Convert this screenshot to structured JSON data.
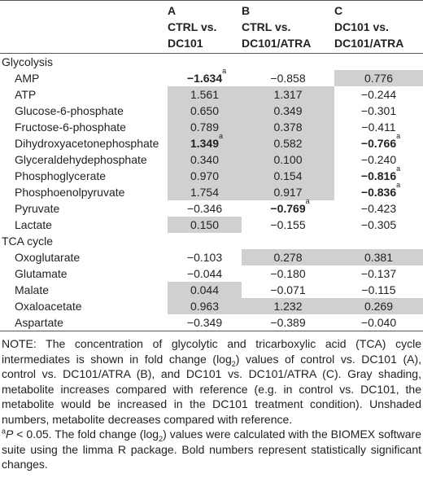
{
  "table": {
    "columns": [
      {
        "letter": "A",
        "lines": [
          "CTRL vs.",
          "DC101"
        ]
      },
      {
        "letter": "B",
        "lines": [
          "CTRL vs.",
          "DC101/ATRA"
        ]
      },
      {
        "letter": "C",
        "lines": [
          "DC101 vs.",
          "DC101/ATRA"
        ]
      }
    ],
    "sections": [
      {
        "title": "Glycolysis",
        "rows": [
          {
            "name": "AMP",
            "cells": [
              {
                "value": "−1.634",
                "sup": "a",
                "bold": true,
                "shaded": false
              },
              {
                "value": "−0.858",
                "bold": false,
                "shaded": false
              },
              {
                "value": "0.776",
                "bold": false,
                "shaded": true
              }
            ]
          },
          {
            "name": "ATP",
            "cells": [
              {
                "value": "1.561",
                "bold": false,
                "shaded": true
              },
              {
                "value": "1.317",
                "bold": false,
                "shaded": true
              },
              {
                "value": "−0.244",
                "bold": false,
                "shaded": false
              }
            ]
          },
          {
            "name": "Glucose-6-phosphate",
            "cells": [
              {
                "value": "0.650",
                "bold": false,
                "shaded": true
              },
              {
                "value": "0.349",
                "bold": false,
                "shaded": true
              },
              {
                "value": "−0.301",
                "bold": false,
                "shaded": false
              }
            ]
          },
          {
            "name": "Fructose-6-phosphate",
            "cells": [
              {
                "value": "0.789",
                "bold": false,
                "shaded": true
              },
              {
                "value": "0.378",
                "bold": false,
                "shaded": true
              },
              {
                "value": "−0.411",
                "bold": false,
                "shaded": false
              }
            ]
          },
          {
            "name": "Dihydroxyacetonephosphate",
            "cells": [
              {
                "value": "1.349",
                "sup": "a",
                "bold": true,
                "shaded": true
              },
              {
                "value": "0.582",
                "bold": false,
                "shaded": true
              },
              {
                "value": "−0.766",
                "sup": "a",
                "bold": true,
                "shaded": false
              }
            ]
          },
          {
            "name": "Glyceraldehydephosphate",
            "cells": [
              {
                "value": "0.340",
                "bold": false,
                "shaded": true
              },
              {
                "value": "0.100",
                "bold": false,
                "shaded": true
              },
              {
                "value": "−0.240",
                "bold": false,
                "shaded": false
              }
            ]
          },
          {
            "name": "Phosphoglycerate",
            "cells": [
              {
                "value": "0.970",
                "bold": false,
                "shaded": true
              },
              {
                "value": "0.154",
                "bold": false,
                "shaded": true
              },
              {
                "value": "−0.816",
                "sup": "a",
                "bold": true,
                "shaded": false
              }
            ]
          },
          {
            "name": "Phosphoenolpyruvate",
            "cells": [
              {
                "value": "1.754",
                "bold": false,
                "shaded": true
              },
              {
                "value": "0.917",
                "bold": false,
                "shaded": true
              },
              {
                "value": "−0.836",
                "sup": "a",
                "bold": true,
                "shaded": false
              }
            ]
          },
          {
            "name": "Pyruvate",
            "cells": [
              {
                "value": "−0.346",
                "bold": false,
                "shaded": false
              },
              {
                "value": "−0.769",
                "sup": "a",
                "bold": true,
                "shaded": false
              },
              {
                "value": "−0.423",
                "bold": false,
                "shaded": false
              }
            ]
          },
          {
            "name": "Lactate",
            "cells": [
              {
                "value": "0.150",
                "bold": false,
                "shaded": true
              },
              {
                "value": "−0.155",
                "bold": false,
                "shaded": false
              },
              {
                "value": "−0.305",
                "bold": false,
                "shaded": false
              }
            ]
          }
        ]
      },
      {
        "title": "TCA cycle",
        "rows": [
          {
            "name": "Oxoglutarate",
            "cells": [
              {
                "value": "−0.103",
                "bold": false,
                "shaded": false
              },
              {
                "value": "0.278",
                "bold": false,
                "shaded": true
              },
              {
                "value": "0.381",
                "bold": false,
                "shaded": true
              }
            ]
          },
          {
            "name": "Glutamate",
            "cells": [
              {
                "value": "−0.044",
                "bold": false,
                "shaded": false
              },
              {
                "value": "−0.180",
                "bold": false,
                "shaded": false
              },
              {
                "value": "−0.137",
                "bold": false,
                "shaded": false
              }
            ]
          },
          {
            "name": "Malate",
            "cells": [
              {
                "value": "0.044",
                "bold": false,
                "shaded": true
              },
              {
                "value": "−0.071",
                "bold": false,
                "shaded": false
              },
              {
                "value": "−0.115",
                "bold": false,
                "shaded": false
              }
            ]
          },
          {
            "name": "Oxaloacetate",
            "cells": [
              {
                "value": "0.963",
                "bold": false,
                "shaded": true
              },
              {
                "value": "1.232",
                "bold": false,
                "shaded": true
              },
              {
                "value": "0.269",
                "bold": false,
                "shaded": true
              }
            ]
          },
          {
            "name": "Aspartate",
            "cells": [
              {
                "value": "−0.349",
                "bold": false,
                "shaded": false
              },
              {
                "value": "−0.389",
                "bold": false,
                "shaded": false
              },
              {
                "value": "−0.040",
                "bold": false,
                "shaded": false
              }
            ]
          }
        ]
      }
    ]
  },
  "note": {
    "main": [
      "NOTE: The concentration of glycolytic and tricarboxylic acid (TCA) cycle intermediates is shown in fold change (log",
      "2",
      ") values of control vs. DC101 (A), control vs. DC101/ATRA (B), and DC101 vs. DC101/ATRA (C). Gray shading, metabolite increases compared with reference (e.g. in control vs. DC101, the metabolite would be increased in the DC101 treatment condition). Unshaded numbers, metabolite decreases compared with reference."
    ],
    "footnote": [
      "a",
      "P",
      " < 0.05. The fold change (log",
      "2",
      ") values were calculated with the BIOMEX software suite using the limma R package. Bold numbers represent statistically significant changes."
    ]
  }
}
